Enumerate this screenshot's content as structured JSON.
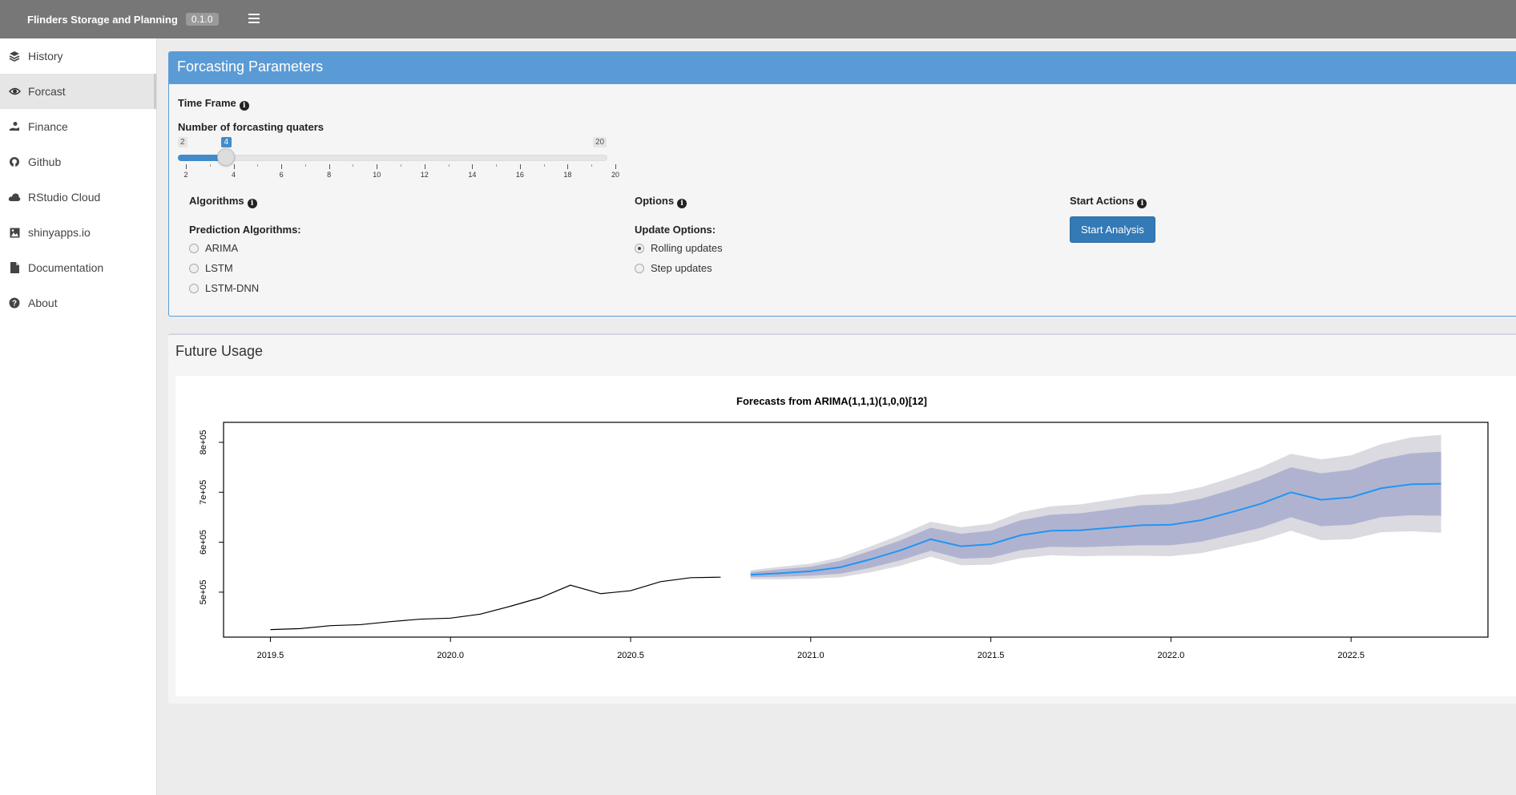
{
  "header": {
    "brand": "Flinders Storage and Planning",
    "version": "0.1.0",
    "menu_toggle_icon": "hamburger-icon"
  },
  "sidebar": {
    "items": [
      {
        "label": "History",
        "icon": "layers-icon",
        "active": false
      },
      {
        "label": "Forcast",
        "icon": "eye-icon",
        "active": true
      },
      {
        "label": "Finance",
        "icon": "hand-coin-icon",
        "active": false
      },
      {
        "label": "Github",
        "icon": "github-icon",
        "active": false
      },
      {
        "label": "RStudio Cloud",
        "icon": "cloud-icon",
        "active": false
      },
      {
        "label": "shinyapps.io",
        "icon": "image-icon",
        "active": false
      },
      {
        "label": "Documentation",
        "icon": "file-icon",
        "active": false
      },
      {
        "label": "About",
        "icon": "question-icon",
        "active": false
      }
    ]
  },
  "params": {
    "title": "Forcasting Parameters",
    "time_frame_label": "Time Frame",
    "slider": {
      "label": "Number of forcasting quaters",
      "min": 2,
      "max": 20,
      "value": 4,
      "min_label": "2",
      "max_label": "20",
      "value_label": "4",
      "tick_labels": [
        "2",
        "4",
        "6",
        "8",
        "10",
        "12",
        "14",
        "16",
        "18",
        "20"
      ]
    },
    "algorithms": {
      "heading": "Algorithms",
      "sub": "Prediction Algorithms:",
      "options": [
        "ARIMA",
        "LSTM",
        "LSTM-DNN"
      ],
      "selected": null
    },
    "options": {
      "heading": "Options",
      "sub": "Update Options:",
      "options": [
        "Rolling updates",
        "Step updates"
      ],
      "selected": "Rolling updates"
    },
    "actions": {
      "heading": "Start Actions",
      "button": "Start Analysis"
    }
  },
  "usage": {
    "title": "Future Usage"
  },
  "colors": {
    "header_bg": "#777777",
    "box_header": "#5b9bd5",
    "button": "#337ab7",
    "forecast_line": "#2196f3",
    "band_80": "#b0b3d0",
    "band_95": "#dadae0"
  },
  "chart_data": {
    "type": "line",
    "title": "Forecasts from ARIMA(1,1,1)(1,0,0)[12]",
    "xlabel": "",
    "ylabel": "",
    "xlim": [
      2019.37,
      2022.88
    ],
    "ylim": [
      410000,
      840000
    ],
    "x_ticks": [
      2019.5,
      2020.0,
      2020.5,
      2021.0,
      2021.5,
      2022.0,
      2022.5
    ],
    "x_tick_labels": [
      "2019.5",
      "2020.0",
      "2020.5",
      "2021.0",
      "2021.5",
      "2022.0",
      "2022.5"
    ],
    "y_ticks": [
      500000,
      600000,
      700000,
      800000
    ],
    "y_tick_labels": [
      "5e+05",
      "6e+05",
      "7e+05",
      "8e+05"
    ],
    "grid": false,
    "series": [
      {
        "kind": "history",
        "x": [
          2019.5,
          2019.583,
          2019.667,
          2019.75,
          2019.833,
          2019.917,
          2020.0,
          2020.083,
          2020.167,
          2020.25,
          2020.333,
          2020.417,
          2020.5,
          2020.583,
          2020.667,
          2020.75
        ],
        "y": [
          425000,
          427000,
          433000,
          435000,
          441000,
          446000,
          448000,
          456000,
          472000,
          489000,
          514000,
          497000,
          503000,
          521000,
          529000,
          530000
        ]
      },
      {
        "kind": "forecast",
        "x": [
          2020.833,
          2020.917,
          2021.0,
          2021.083,
          2021.167,
          2021.25,
          2021.333,
          2021.417,
          2021.5,
          2021.583,
          2021.667,
          2021.75,
          2021.833,
          2021.917,
          2022.0,
          2022.083,
          2022.167,
          2022.25,
          2022.333,
          2022.417,
          2022.5,
          2022.583,
          2022.667,
          2022.75
        ],
        "y": [
          535000,
          538000,
          542000,
          550000,
          566000,
          584000,
          606000,
          592000,
          596000,
          614000,
          623000,
          624000,
          629000,
          634000,
          635000,
          644000,
          660000,
          677000,
          700000,
          685000,
          690000,
          708000,
          716000,
          717000
        ],
        "lo80": [
          530000,
          531000,
          533000,
          537000,
          549000,
          564000,
          583000,
          567000,
          569000,
          584000,
          591000,
          590000,
          592000,
          594000,
          594000,
          601000,
          615000,
          629000,
          650000,
          632000,
          635000,
          650000,
          654000,
          653000
        ],
        "hi80": [
          540000,
          546000,
          551000,
          563000,
          583000,
          604000,
          629000,
          617000,
          623000,
          644000,
          655000,
          658000,
          666000,
          674000,
          676000,
          687000,
          705000,
          725000,
          750000,
          738000,
          745000,
          766000,
          778000,
          781000
        ],
        "lo95": [
          526000,
          526000,
          527000,
          530000,
          540000,
          553000,
          571000,
          554000,
          555000,
          568000,
          574000,
          572000,
          573000,
          573000,
          572000,
          578000,
          591000,
          604000,
          623000,
          604000,
          606000,
          620000,
          622000,
          619000
        ],
        "hi95": [
          544000,
          551000,
          557000,
          570000,
          592000,
          615000,
          641000,
          630000,
          637000,
          660000,
          672000,
          676000,
          685000,
          695000,
          698000,
          710000,
          729000,
          750000,
          777000,
          766000,
          774000,
          796000,
          810000,
          815000
        ]
      }
    ]
  }
}
